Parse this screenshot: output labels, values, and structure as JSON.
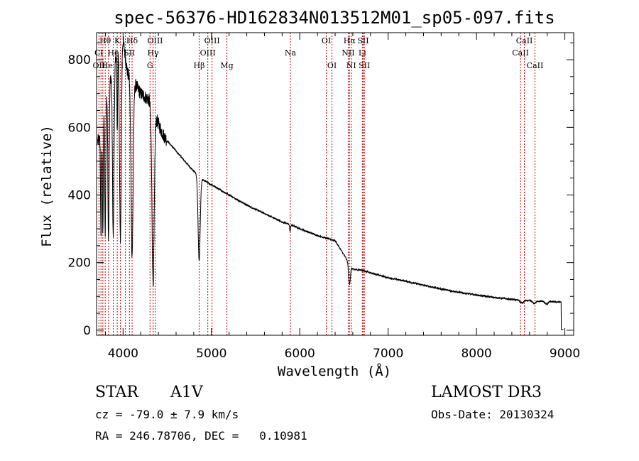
{
  "chart_data": {
    "type": "line",
    "title": "spec-56376-HD162834N013512M01_sp05-097.fits",
    "xlabel": "Wavelength (Å)",
    "ylabel": "Flux (relative)",
    "xlim": [
      3700,
      9100
    ],
    "ylim": [
      -15,
      880
    ],
    "xticks": [
      4000,
      5000,
      6000,
      7000,
      8000,
      9000
    ],
    "yticks": [
      0,
      200,
      400,
      600,
      800
    ],
    "x_minor_step": 200,
    "y_minor_step": 50,
    "continuum": [
      [
        3730,
        560
      ],
      [
        3800,
        680
      ],
      [
        3900,
        800
      ],
      [
        3990,
        880
      ],
      [
        4050,
        760
      ],
      [
        4110,
        740
      ],
      [
        4200,
        700
      ],
      [
        4300,
        680
      ],
      [
        4400,
        610
      ],
      [
        4450,
        580
      ],
      [
        4500,
        560
      ],
      [
        4600,
        530
      ],
      [
        4700,
        500
      ],
      [
        4800,
        470
      ],
      [
        4900,
        445
      ],
      [
        5000,
        430
      ],
      [
        5100,
        415
      ],
      [
        5200,
        400
      ],
      [
        5400,
        370
      ],
      [
        5600,
        345
      ],
      [
        5800,
        320
      ],
      [
        5900,
        312
      ],
      [
        6000,
        300
      ],
      [
        6200,
        280
      ],
      [
        6400,
        265
      ],
      [
        6600,
        180
      ],
      [
        6700,
        178
      ],
      [
        6800,
        170
      ],
      [
        7000,
        155
      ],
      [
        7200,
        145
      ],
      [
        7400,
        133
      ],
      [
        7600,
        122
      ],
      [
        7800,
        112
      ],
      [
        8000,
        104
      ],
      [
        8200,
        97
      ],
      [
        8400,
        91
      ],
      [
        8500,
        88
      ],
      [
        8700,
        86
      ],
      [
        8950,
        83
      ]
    ],
    "absorption_lines": [
      {
        "center": 3750,
        "depth": 0.55,
        "width": 5
      },
      {
        "center": 3771,
        "depth": 0.55,
        "width": 5
      },
      {
        "center": 3798,
        "depth": 0.58,
        "width": 6
      },
      {
        "center": 3835,
        "depth": 0.62,
        "width": 7
      },
      {
        "center": 3889,
        "depth": 0.65,
        "width": 9
      },
      {
        "center": 3934,
        "depth": 0.3,
        "width": 4
      },
      {
        "center": 3970,
        "depth": 0.7,
        "width": 10
      },
      {
        "center": 4102,
        "depth": 0.7,
        "width": 12
      },
      {
        "center": 4340,
        "depth": 0.78,
        "width": 13
      },
      {
        "center": 4861,
        "depth": 0.55,
        "width": 12
      },
      {
        "center": 5890,
        "depth": 0.06,
        "width": 6
      },
      {
        "center": 6563,
        "depth": 0.3,
        "width": 10
      }
    ],
    "features": [
      {
        "name": "Ca triplet ripple",
        "range": [
          8480,
          8900
        ]
      },
      {
        "name": "red cutoff",
        "x": 8960,
        "y": 2
      }
    ],
    "line_labels": [
      {
        "text": "Hθ",
        "wave": 3798,
        "row": 0
      },
      {
        "text": "K",
        "wave": 3934,
        "row": 0
      },
      {
        "text": "Hδ",
        "wave": 4102,
        "row": 0
      },
      {
        "text": "OIII",
        "wave": 4363,
        "row": 0
      },
      {
        "text": "OIII",
        "wave": 5007,
        "row": 0
      },
      {
        "text": "OI",
        "wave": 6300,
        "row": 0
      },
      {
        "text": "Hα",
        "wave": 6563,
        "row": 0
      },
      {
        "text": "SII",
        "wave": 6717,
        "row": 0
      },
      {
        "text": "CaII",
        "wave": 8542,
        "row": 0
      },
      {
        "text": "CI",
        "wave": 3727,
        "row": 1
      },
      {
        "text": "He",
        "wave": 3889,
        "row": 1
      },
      {
        "text": "I",
        "wave": 4026,
        "row": 1
      },
      {
        "text": "SII",
        "wave": 4072,
        "row": 1
      },
      {
        "text": "Hγ",
        "wave": 4340,
        "row": 1
      },
      {
        "text": "OIII",
        "wave": 4959,
        "row": 1
      },
      {
        "text": "NII",
        "wave": 6548,
        "row": 1
      },
      {
        "text": "Li",
        "wave": 6708,
        "row": 1
      },
      {
        "text": "CaII",
        "wave": 8498,
        "row": 1
      },
      {
        "text": "OII",
        "wave": 3727,
        "row": 2
      },
      {
        "text": "He",
        "wave": 3820,
        "row": 2
      },
      {
        "text": "H",
        "wave": 3970,
        "row": 2
      },
      {
        "text": "G",
        "wave": 4305,
        "row": 2
      },
      {
        "text": "Hβ",
        "wave": 4861,
        "row": 2
      },
      {
        "text": "Mg",
        "wave": 5175,
        "row": 2
      },
      {
        "text": "Na",
        "wave": 5893,
        "row": 1
      },
      {
        "text": "OI",
        "wave": 6364,
        "row": 2
      },
      {
        "text": "NI",
        "wave": 6583,
        "row": 2
      },
      {
        "text": "SII",
        "wave": 6731,
        "row": 2
      },
      {
        "text": "CaII",
        "wave": 8662,
        "row": 2
      }
    ],
    "marker_lines": [
      3727,
      3750,
      3771,
      3798,
      3835,
      3889,
      3934,
      3970,
      4026,
      4072,
      4102,
      4305,
      4340,
      4363,
      4861,
      4959,
      5007,
      5175,
      5893,
      6300,
      6364,
      6548,
      6563,
      6583,
      6708,
      6717,
      6731,
      8498,
      8542,
      8662
    ]
  },
  "info": {
    "star_type": "STAR",
    "subclass": "A1V",
    "survey": "LAMOST DR3",
    "cz": "cz = -79.0 ± 7.9 km/s",
    "obs_date": "Obs-Date: 20130324",
    "coords": "RA = 246.78706, DEC =   0.10981"
  },
  "colors": {
    "spectrum": "#000000",
    "marker": "#cc0000",
    "axis": "#000000"
  }
}
